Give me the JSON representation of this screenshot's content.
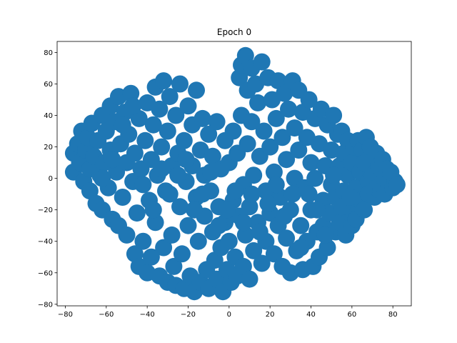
{
  "chart_data": {
    "type": "scatter",
    "title": "Epoch 0",
    "xlabel": "",
    "ylabel": "",
    "xlim": [
      -84,
      89
    ],
    "ylim": [
      -81,
      87
    ],
    "xticks": [
      -80,
      -60,
      -40,
      -20,
      0,
      20,
      40,
      60,
      80
    ],
    "yticks": [
      -80,
      -60,
      -40,
      -20,
      0,
      20,
      40,
      60,
      80
    ],
    "xtick_labels": [
      "−80",
      "−60",
      "−40",
      "−20",
      "0",
      "20",
      "40",
      "60",
      "80"
    ],
    "ytick_labels": [
      "−80",
      "−60",
      "−40",
      "−20",
      "0",
      "20",
      "40",
      "60",
      "80"
    ],
    "grid": false,
    "legend": "none",
    "series": [
      {
        "color": "#1f77b4",
        "points": [
          [
            -76,
            16
          ],
          [
            -76,
            4
          ],
          [
            -74,
            22
          ],
          [
            -73,
            10
          ],
          [
            -72,
            30
          ],
          [
            -71,
            -2
          ],
          [
            -70,
            18
          ],
          [
            -69,
            26
          ],
          [
            -68,
            6
          ],
          [
            -68,
            -8
          ],
          [
            -67,
            35
          ],
          [
            -66,
            14
          ],
          [
            -65,
            -16
          ],
          [
            -64,
            24
          ],
          [
            -63,
            2
          ],
          [
            -62,
            40
          ],
          [
            -62,
            -20
          ],
          [
            -61,
            10
          ],
          [
            -60,
            30
          ],
          [
            -59,
            -6
          ],
          [
            -58,
            46
          ],
          [
            -58,
            18
          ],
          [
            -57,
            -26
          ],
          [
            -56,
            36
          ],
          [
            -55,
            4
          ],
          [
            -54,
            52
          ],
          [
            -54,
            -30
          ],
          [
            -53,
            22
          ],
          [
            -52,
            -12
          ],
          [
            -51,
            42
          ],
          [
            -50,
            10
          ],
          [
            -50,
            -36
          ],
          [
            -49,
            28
          ],
          [
            -48,
            54
          ],
          [
            -47,
            -2
          ],
          [
            -46,
            -48
          ],
          [
            -46,
            16
          ],
          [
            -45,
            -22
          ],
          [
            -44,
            38
          ],
          [
            -44,
            -56
          ],
          [
            -43,
            6
          ],
          [
            -42,
            -40
          ],
          [
            -41,
            24
          ],
          [
            -40,
            48
          ],
          [
            -40,
            -60
          ],
          [
            -39,
            -14
          ],
          [
            -38,
            12
          ],
          [
            -38,
            -50
          ],
          [
            -37,
            34
          ],
          [
            -36,
            58
          ],
          [
            -36,
            -28
          ],
          [
            -35,
            2
          ],
          [
            -34,
            -62
          ],
          [
            -34,
            44
          ],
          [
            -33,
            20
          ],
          [
            -32,
            -44
          ],
          [
            -32,
            62
          ],
          [
            -31,
            -8
          ],
          [
            -30,
            -66
          ],
          [
            -30,
            30
          ],
          [
            -29,
            52
          ],
          [
            -28,
            -36
          ],
          [
            -28,
            8
          ],
          [
            -27,
            -56
          ],
          [
            -26,
            40
          ],
          [
            -26,
            -68
          ],
          [
            -25,
            16
          ],
          [
            -24,
            -18
          ],
          [
            -24,
            60
          ],
          [
            -23,
            -48
          ],
          [
            -22,
            24
          ],
          [
            -22,
            -70
          ],
          [
            -21,
            -2
          ],
          [
            -20,
            46
          ],
          [
            -20,
            -30
          ],
          [
            -19,
            -62
          ],
          [
            -18,
            8
          ],
          [
            -18,
            34
          ],
          [
            -17,
            -72
          ],
          [
            -16,
            -12
          ],
          [
            -16,
            56
          ],
          [
            -15,
            -40
          ],
          [
            -14,
            18
          ],
          [
            -14,
            -66
          ],
          [
            -13,
            38
          ],
          [
            -12,
            -24
          ],
          [
            -12,
            2
          ],
          [
            -11,
            -58
          ],
          [
            -10,
            28
          ],
          [
            -10,
            -70
          ],
          [
            -9,
            -8
          ],
          [
            -8,
            -34
          ],
          [
            -8,
            14
          ],
          [
            -7,
            -52
          ],
          [
            -6,
            36
          ],
          [
            -6,
            -64
          ],
          [
            -5,
            -18
          ],
          [
            -4,
            6
          ],
          [
            -4,
            -44
          ],
          [
            -3,
            -72
          ],
          [
            -2,
            24
          ],
          [
            -2,
            -28
          ],
          [
            -1,
            -58
          ],
          [
            0,
            10
          ],
          [
            0,
            -40
          ],
          [
            1,
            -66
          ],
          [
            2,
            30
          ],
          [
            2,
            -14
          ],
          [
            3,
            -50
          ],
          [
            4,
            16
          ],
          [
            4,
            -62
          ],
          [
            5,
            64
          ],
          [
            5,
            -24
          ],
          [
            6,
            72
          ],
          [
            6,
            40
          ],
          [
            7,
            -4
          ],
          [
            7,
            -56
          ],
          [
            8,
            78
          ],
          [
            8,
            -36
          ],
          [
            9,
            22
          ],
          [
            9,
            56
          ],
          [
            10,
            -64
          ],
          [
            10,
            -18
          ],
          [
            11,
            70
          ],
          [
            11,
            36
          ],
          [
            12,
            2
          ],
          [
            12,
            -46
          ],
          [
            13,
            60
          ],
          [
            14,
            -28
          ],
          [
            14,
            48
          ],
          [
            15,
            14
          ],
          [
            16,
            -54
          ],
          [
            16,
            74
          ],
          [
            17,
            30
          ],
          [
            18,
            -8
          ],
          [
            18,
            -40
          ],
          [
            19,
            64
          ],
          [
            20,
            20
          ],
          [
            20,
            -22
          ],
          [
            21,
            50
          ],
          [
            22,
            -48
          ],
          [
            22,
            4
          ],
          [
            23,
            38
          ],
          [
            24,
            -30
          ],
          [
            24,
            62
          ],
          [
            25,
            -12
          ],
          [
            26,
            26
          ],
          [
            26,
            -56
          ],
          [
            27,
            54
          ],
          [
            28,
            -38
          ],
          [
            28,
            12
          ],
          [
            29,
            44
          ],
          [
            30,
            -60
          ],
          [
            30,
            -20
          ],
          [
            31,
            62
          ],
          [
            32,
            32
          ],
          [
            32,
            0
          ],
          [
            33,
            -46
          ],
          [
            34,
            56
          ],
          [
            34,
            18
          ],
          [
            35,
            -30
          ],
          [
            36,
            42
          ],
          [
            36,
            -58
          ],
          [
            37,
            -6
          ],
          [
            38,
            26
          ],
          [
            38,
            -40
          ],
          [
            39,
            50
          ],
          [
            40,
            10
          ],
          [
            40,
            -20
          ],
          [
            41,
            -56
          ],
          [
            42,
            38
          ],
          [
            42,
            0
          ],
          [
            43,
            -34
          ],
          [
            44,
            22
          ],
          [
            44,
            -50
          ],
          [
            45,
            44
          ],
          [
            46,
            -14
          ],
          [
            46,
            -30
          ],
          [
            47,
            8
          ],
          [
            48,
            34
          ],
          [
            48,
            -44
          ],
          [
            49,
            -22
          ],
          [
            50,
            18
          ],
          [
            50,
            -4
          ],
          [
            51,
            40
          ],
          [
            52,
            -34
          ],
          [
            52,
            -12
          ],
          [
            53,
            28
          ],
          [
            54,
            8
          ],
          [
            54,
            -28
          ],
          [
            55,
            30
          ],
          [
            56,
            -8
          ],
          [
            56,
            16
          ],
          [
            57,
            -36
          ],
          [
            58,
            24
          ],
          [
            58,
            2
          ],
          [
            59,
            -22
          ],
          [
            60,
            10
          ],
          [
            60,
            -30
          ],
          [
            61,
            20
          ],
          [
            62,
            -6
          ],
          [
            62,
            -26
          ],
          [
            63,
            24
          ],
          [
            64,
            4
          ],
          [
            64,
            -14
          ],
          [
            65,
            18
          ],
          [
            66,
            -20
          ],
          [
            66,
            10
          ],
          [
            67,
            26
          ],
          [
            68,
            -2
          ],
          [
            68,
            -10
          ],
          [
            69,
            20
          ],
          [
            70,
            2
          ],
          [
            71,
            -12
          ],
          [
            72,
            16
          ],
          [
            72,
            -6
          ],
          [
            73,
            8
          ],
          [
            74,
            -8
          ],
          [
            75,
            12
          ],
          [
            76,
            0
          ],
          [
            76,
            -10
          ],
          [
            77,
            6
          ],
          [
            78,
            -4
          ],
          [
            79,
            4
          ],
          [
            80,
            -6
          ],
          [
            81,
            -2
          ],
          [
            82,
            -4
          ],
          [
            -62,
            0
          ],
          [
            -57,
            12
          ],
          [
            -52,
            34
          ],
          [
            -47,
            46
          ],
          [
            -42,
            -4
          ],
          [
            -37,
            -20
          ],
          [
            -33,
            6
          ],
          [
            -29,
            -10
          ],
          [
            -25,
            2
          ],
          [
            -21,
            12
          ],
          [
            -17,
            -20
          ],
          [
            -13,
            -10
          ],
          [
            -9,
            4
          ],
          [
            -5,
            -30
          ],
          [
            -1,
            -20
          ],
          [
            3,
            -8
          ],
          [
            7,
            -28
          ],
          [
            11,
            -10
          ],
          [
            15,
            -34
          ],
          [
            19,
            -16
          ],
          [
            23,
            -4
          ],
          [
            27,
            -24
          ],
          [
            31,
            -10
          ],
          [
            35,
            -44
          ],
          [
            39,
            -10
          ],
          [
            43,
            -20
          ],
          [
            47,
            -36
          ],
          [
            51,
            2
          ],
          [
            55,
            -18
          ],
          [
            59,
            -12
          ]
        ]
      }
    ]
  }
}
